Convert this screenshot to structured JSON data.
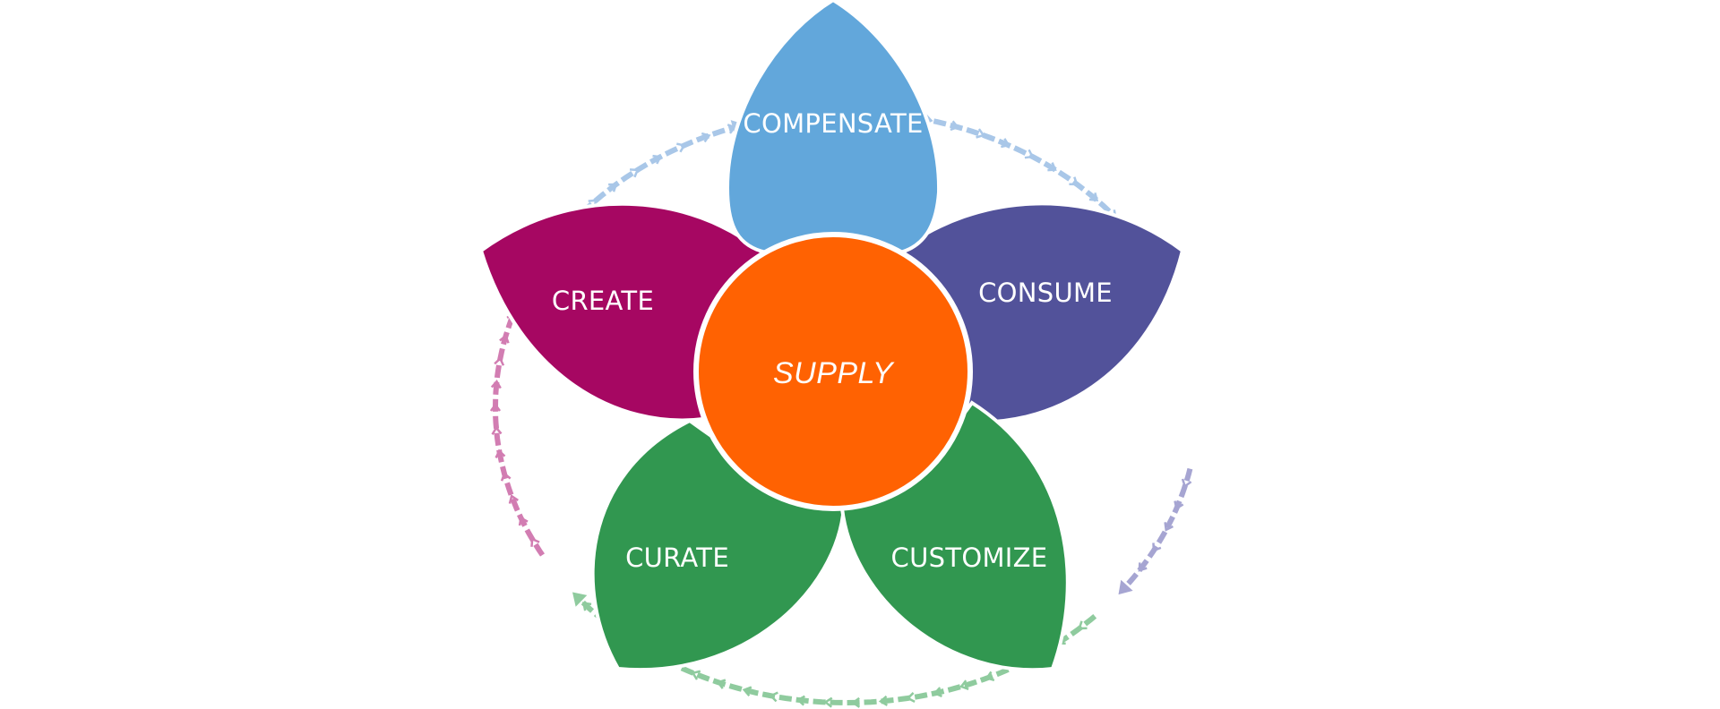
{
  "diagram": {
    "center": {
      "label": "SUPPLY",
      "color": "#FF6202"
    },
    "petals": [
      {
        "id": "compensate",
        "label": "COMPENSATE",
        "color": "#62A7DB"
      },
      {
        "id": "consume",
        "label": "CONSUME",
        "color": "#52529A"
      },
      {
        "id": "customize",
        "label": "CUSTOMIZE",
        "color": "#319750"
      },
      {
        "id": "curate",
        "label": "CURATE",
        "color": "#319750"
      },
      {
        "id": "create",
        "label": "CREATE",
        "color": "#A60762"
      }
    ],
    "cycle_ring": {
      "segments": [
        {
          "from": "compensate",
          "to": "consume",
          "color": "#A9C7E8"
        },
        {
          "from": "consume",
          "to": "customize",
          "color": "#A6A5D2"
        },
        {
          "from": "customize",
          "to": "curate",
          "color": "#8FCB9E"
        },
        {
          "from": "curate",
          "to": "create",
          "color": "#D27DB2"
        },
        {
          "from": "create",
          "to": "compensate",
          "color": "#A9C7E8"
        }
      ]
    }
  }
}
